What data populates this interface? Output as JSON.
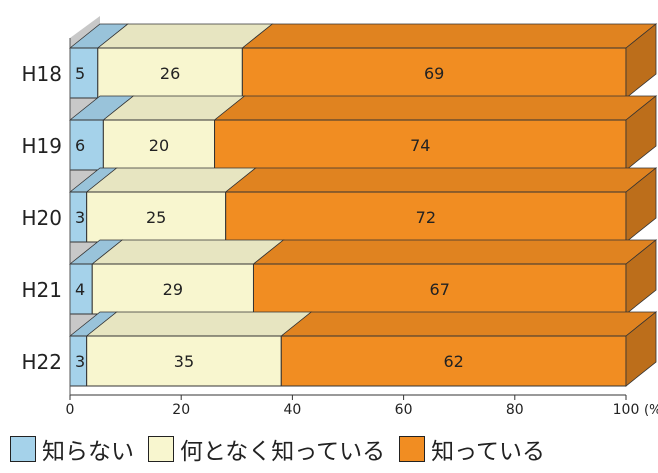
{
  "chart_data": {
    "type": "bar",
    "orientation": "horizontal",
    "stacked": true,
    "categories": [
      "H18",
      "H19",
      "H20",
      "H21",
      "H22"
    ],
    "series": [
      {
        "name": "知らない",
        "values": [
          5,
          6,
          3,
          4,
          3
        ],
        "color": "#a5d2ea"
      },
      {
        "name": "何となく知っている",
        "values": [
          26,
          20,
          25,
          29,
          35
        ],
        "color": "#f8f6cf"
      },
      {
        "name": "知っている",
        "values": [
          69,
          74,
          72,
          67,
          62
        ],
        "color": "#f18d22"
      }
    ],
    "xlim": [
      0,
      100
    ],
    "x_ticks": [
      "0",
      "20",
      "40",
      "60",
      "80",
      "100"
    ],
    "x_unit": "(%)",
    "legend_position": "bottom",
    "title": "",
    "xlabel": "",
    "ylabel": ""
  }
}
